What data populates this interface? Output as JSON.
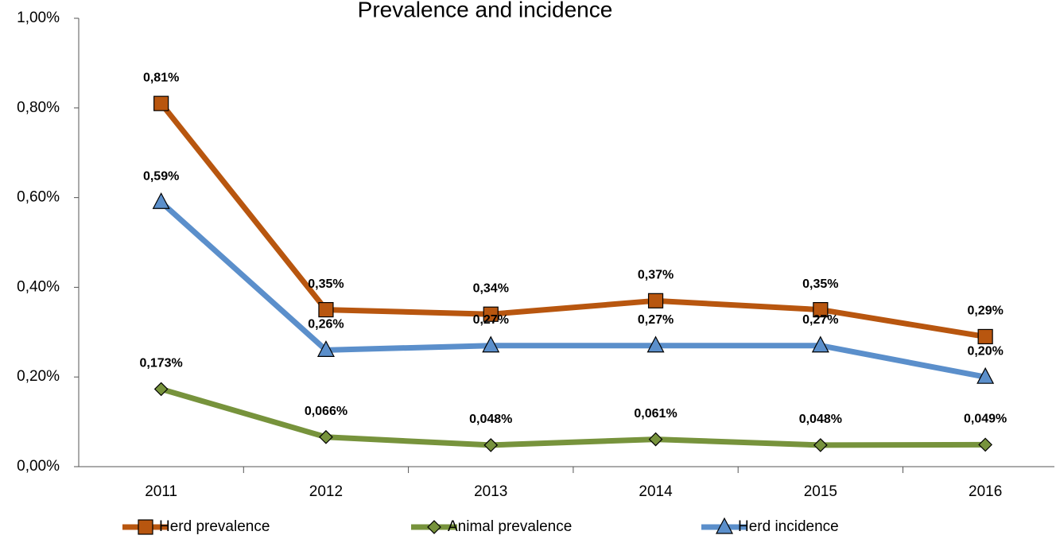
{
  "chart_data": {
    "type": "line",
    "title": "Prevalence and incidence",
    "categories": [
      "2011",
      "2012",
      "2013",
      "2014",
      "2015",
      "2016"
    ],
    "series": [
      {
        "name": "Herd prevalence",
        "color": "#b8560f",
        "marker": "square",
        "values": [
          0.81,
          0.35,
          0.34,
          0.37,
          0.35,
          0.29
        ],
        "value_labels": [
          "0,81%",
          "0,35%",
          "0,34%",
          "0,37%",
          "0,35%",
          "0,29%"
        ]
      },
      {
        "name": "Animal prevalence",
        "color": "#77933c",
        "marker": "diamond",
        "values": [
          0.173,
          0.066,
          0.048,
          0.061,
          0.048,
          0.049
        ],
        "value_labels": [
          "0,173%",
          "0,066%",
          "0,048%",
          "0,061%",
          "0,048%",
          "0,049%"
        ]
      },
      {
        "name": "Herd incidence",
        "color": "#5b8fcb",
        "marker": "triangle",
        "values": [
          0.59,
          0.26,
          0.27,
          0.27,
          0.27,
          0.2
        ],
        "value_labels": [
          "0,59%",
          "0,26%",
          "0,27%",
          "0,27%",
          "0,27%",
          "0,20%"
        ]
      }
    ],
    "ylim": [
      0,
      1.0
    ],
    "yticks": [
      {
        "value": 0,
        "label": "0,00%"
      },
      {
        "value": 0.2,
        "label": "0,20%"
      },
      {
        "value": 0.4,
        "label": "0,40%"
      },
      {
        "value": 0.6,
        "label": "0,60%"
      },
      {
        "value": 0.8,
        "label": "0,80%"
      },
      {
        "value": 1.0,
        "label": "1,00%"
      }
    ],
    "grid": false,
    "legend": "bottom"
  }
}
